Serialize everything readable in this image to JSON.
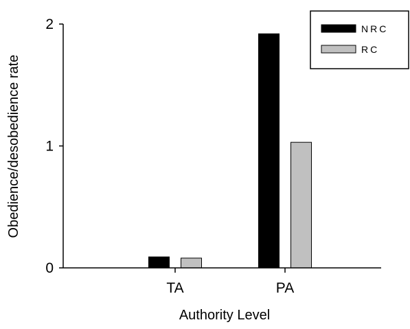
{
  "chart_data": {
    "type": "bar",
    "categories": [
      "TA",
      "PA"
    ],
    "series": [
      {
        "name": "NRC",
        "values": [
          0.09,
          1.92
        ],
        "color": "#000000"
      },
      {
        "name": "RC",
        "values": [
          0.08,
          1.03
        ],
        "color": "#c0c0c0"
      }
    ],
    "xlabel": "Authority Level",
    "ylabel": "Obedience/desobedience rate",
    "ylim": [
      0,
      2
    ],
    "yticks": [
      0,
      1,
      2
    ],
    "grid": false,
    "legend_position": "top-right"
  }
}
